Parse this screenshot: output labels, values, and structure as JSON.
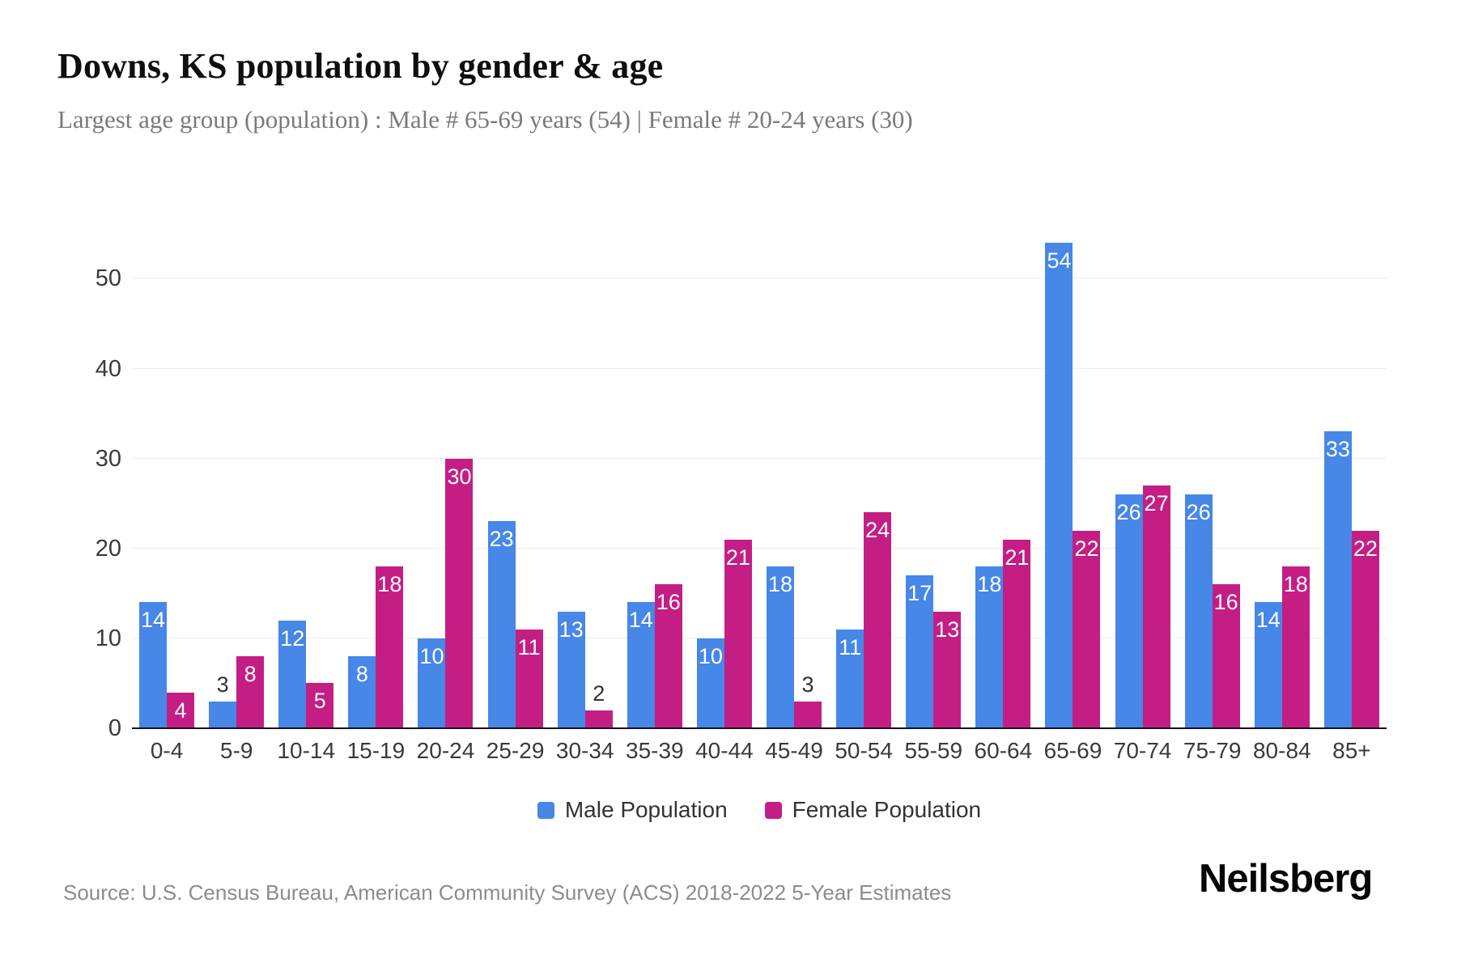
{
  "page": {
    "title": "Downs, KS population by gender & age",
    "subtitle": "Largest age group (population) : Male # 65-69 years (54) | Female # 20-24 years (30)",
    "source": "Source: U.S. Census Bureau, American Community Survey (ACS) 2018-2022 5-Year Estimates",
    "brand": "Neilsberg"
  },
  "colors": {
    "male": "#4687e8",
    "female": "#c41e84",
    "gridline": "#ececec",
    "axis_line": "#141414",
    "title_text": "#0f0f0f",
    "subtitle_text": "#7a7a7a",
    "tick_text": "#3a3a3a",
    "source_text": "#8c8c8c",
    "bar_label_inside": "#ffffff",
    "bar_label_outside": "#333333"
  },
  "legend": {
    "items": [
      {
        "label": "Male Population",
        "key": "male"
      },
      {
        "label": "Female Population",
        "key": "female"
      }
    ]
  },
  "chart_data": {
    "type": "bar",
    "title": "Downs, KS population by gender & age",
    "subtitle": "Largest age group (population) : Male # 65-69 years (54) | Female # 20-24 years (30)",
    "categories": [
      "0-4",
      "5-9",
      "10-14",
      "15-19",
      "20-24",
      "25-29",
      "30-34",
      "35-39",
      "40-44",
      "45-49",
      "50-54",
      "55-59",
      "60-64",
      "65-69",
      "70-74",
      "75-79",
      "80-84",
      "85+"
    ],
    "series": [
      {
        "name": "Male Population",
        "color_key": "male",
        "values": [
          14,
          3,
          12,
          8,
          10,
          23,
          13,
          14,
          10,
          18,
          11,
          17,
          18,
          54,
          26,
          26,
          14,
          33
        ]
      },
      {
        "name": "Female Population",
        "color_key": "female",
        "values": [
          4,
          8,
          5,
          18,
          30,
          11,
          2,
          16,
          21,
          3,
          24,
          13,
          21,
          22,
          27,
          16,
          18,
          22
        ]
      }
    ],
    "xlabel": "",
    "ylabel": "",
    "ylim": [
      0,
      55.8
    ],
    "yticks": [
      0,
      10,
      20,
      30,
      40,
      50
    ],
    "grid": true,
    "legend_position": "bottom",
    "label_outside_max": 3
  }
}
